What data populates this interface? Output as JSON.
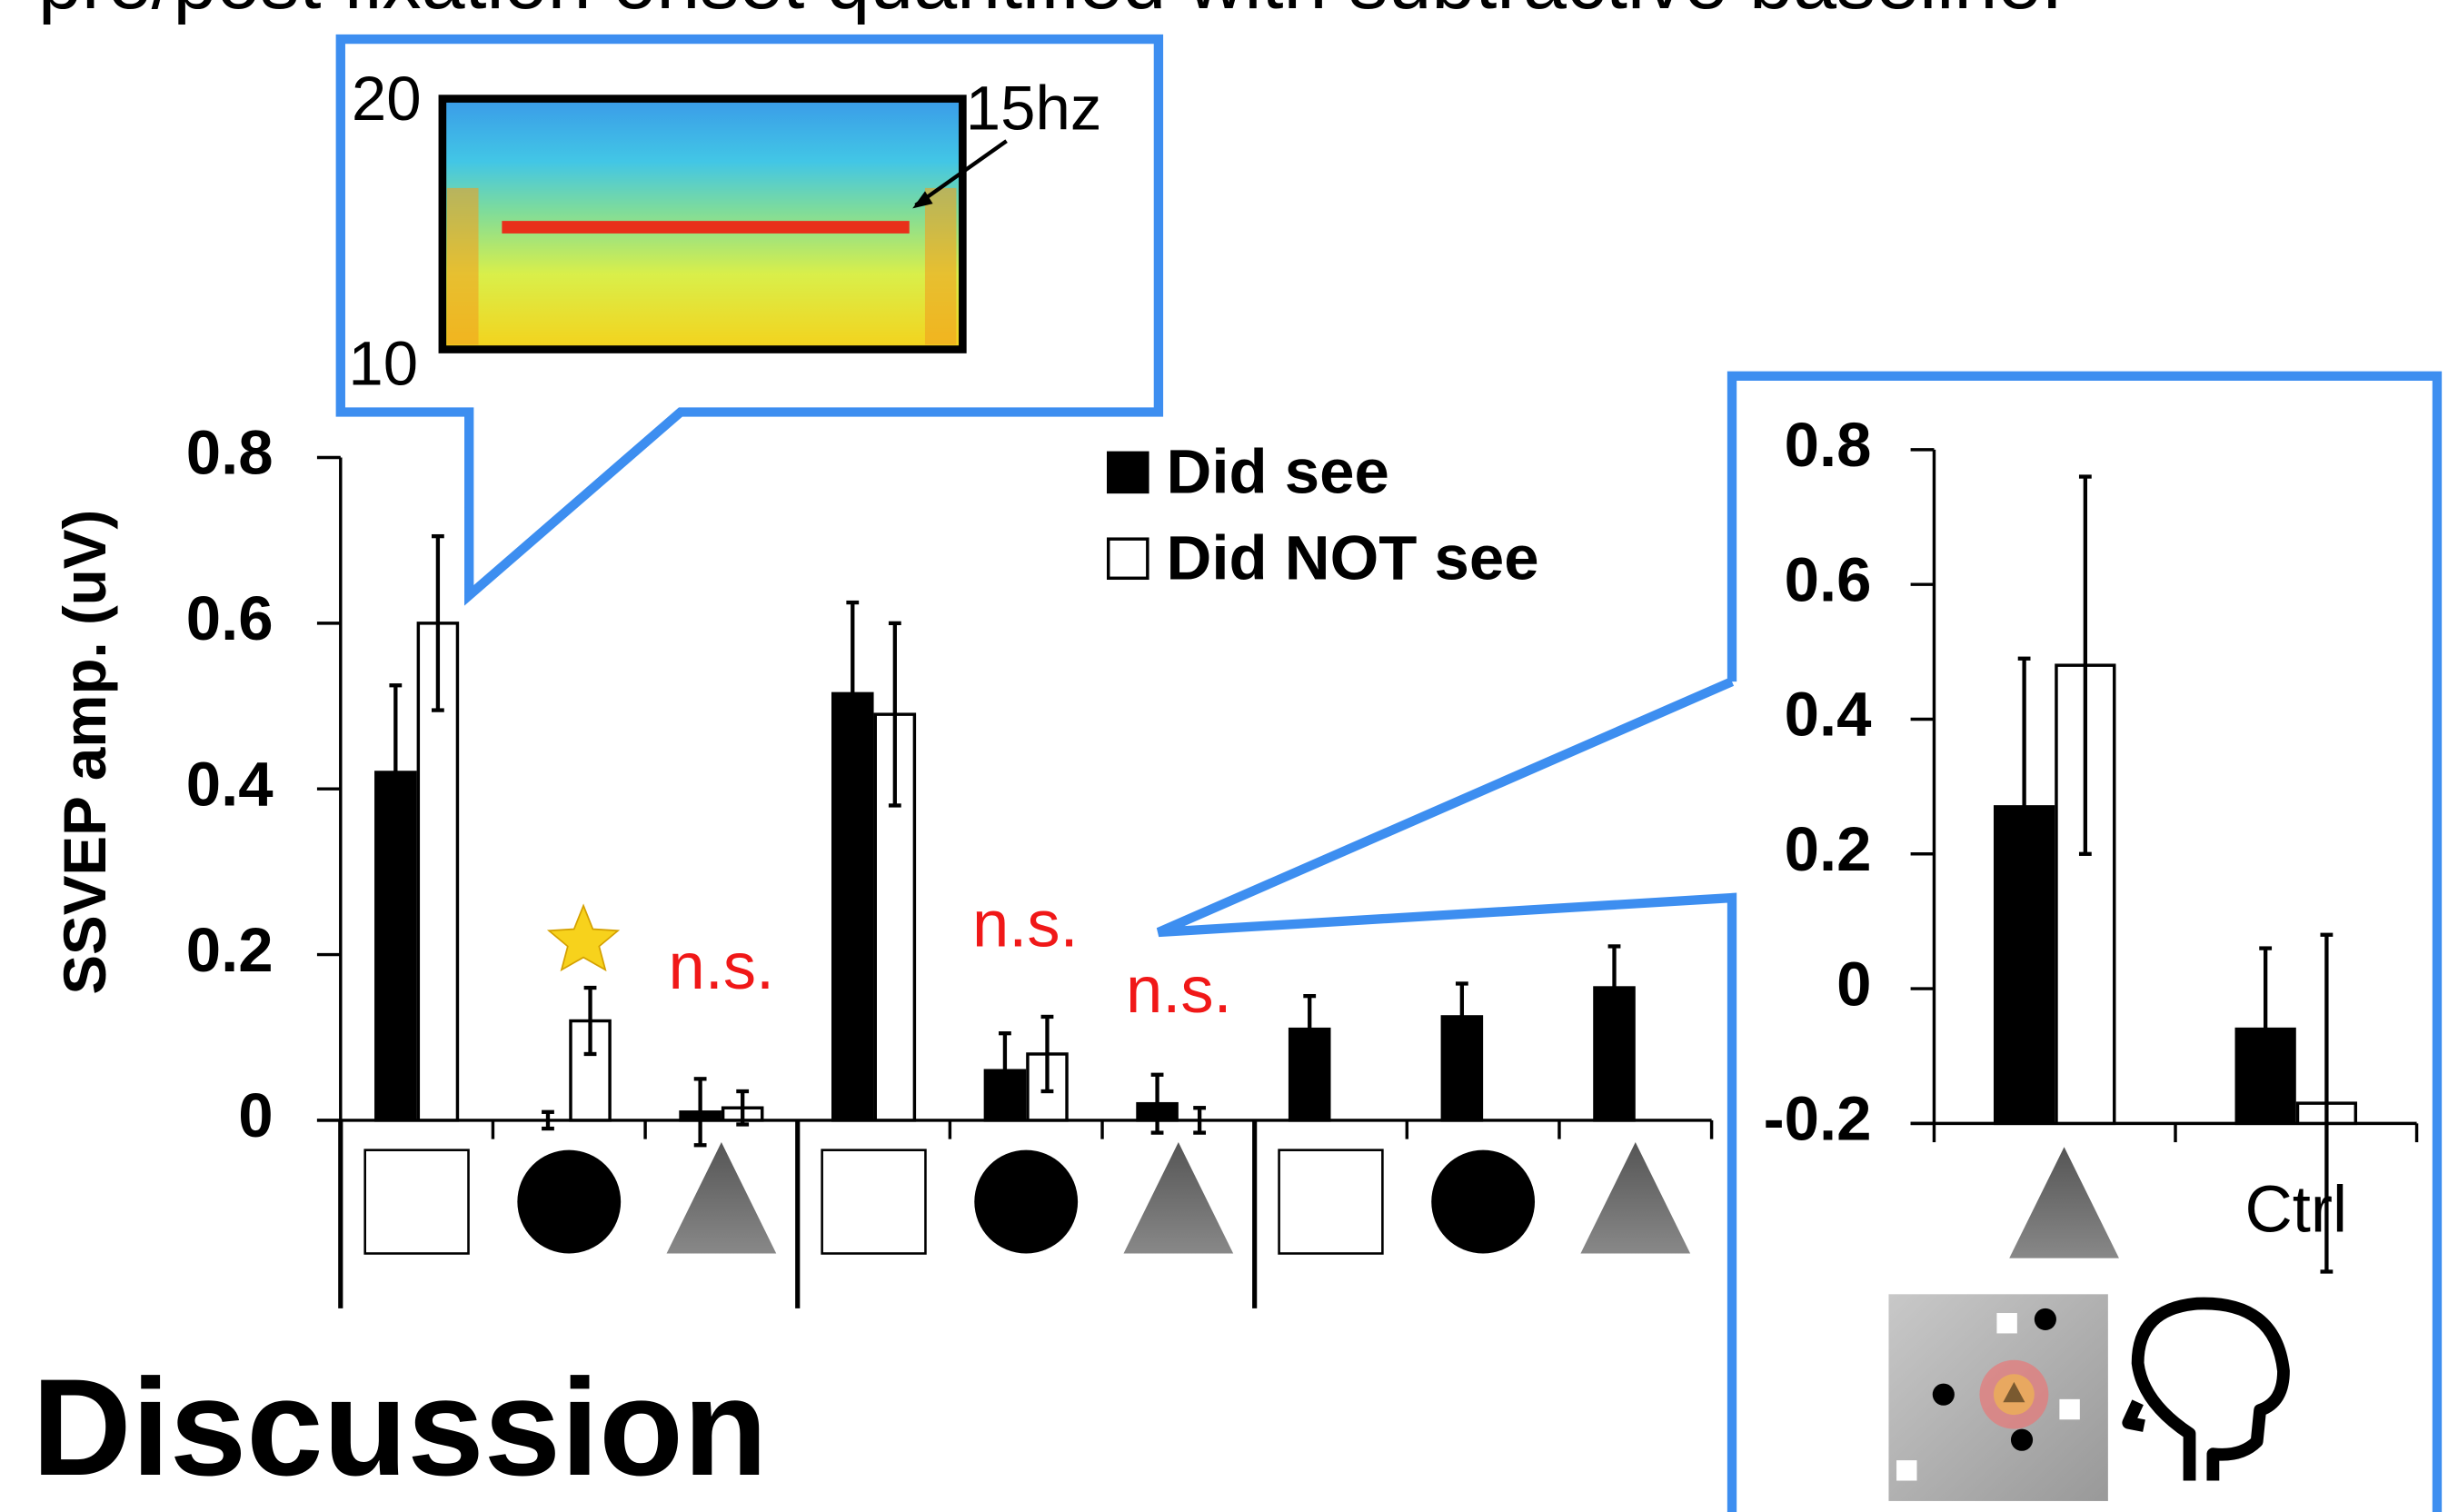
{
  "header": {
    "title": "pre/post fixation onset quantified with subtractive baseline."
  },
  "section": {
    "title": "Discussion"
  },
  "spectrogram": {
    "yticks": [
      10,
      20
    ],
    "annotation": "15hz"
  },
  "chart_data": [
    {
      "type": "bar",
      "y_label": "SSVEP amp. (uV)",
      "legend": true,
      "categories": [
        null,
        null,
        null,
        null,
        null,
        null,
        null,
        null,
        null
      ],
      "series": [
        {
          "name": "Did see",
          "color": "#000000",
          "values": [
            0.42,
            0.0,
            0.01,
            0.515,
            0.06,
            0.02,
            0.11,
            0.125,
            0.16
          ],
          "errors": [
            0.105,
            0.01,
            0.04,
            0.11,
            0.045,
            0.035,
            0.04,
            0.04,
            0.05
          ]
        },
        {
          "name": "Did NOT see",
          "color": "#ffffff",
          "values": [
            0.6,
            0.12,
            0.015,
            0.49,
            0.08,
            0.0,
            null,
            null,
            null
          ],
          "errors": [
            0.105,
            0.04,
            0.02,
            0.11,
            0.045,
            0.015,
            null,
            null,
            null
          ]
        }
      ],
      "annotations": [
        {
          "text": "n.s."
        },
        {
          "text": "n.s."
        },
        {
          "text": "n.s."
        }
      ],
      "ylim": [
        0,
        0.8
      ],
      "yticks": [
        0,
        0.2,
        0.4,
        0.6,
        0.8
      ]
    },
    {
      "type": "bar",
      "legend": false,
      "categories": [
        null,
        "Ctrl"
      ],
      "series": [
        {
          "name": "Did see",
          "color": "#000000",
          "values": [
            0.27,
            -0.06
          ],
          "errors": [
            0.22,
            0.12
          ]
        },
        {
          "name": "Did NOT see",
          "color": "#ffffff",
          "values": [
            0.48,
            -0.17
          ],
          "errors": [
            0.28,
            0.25
          ]
        }
      ],
      "ylim": [
        -0.2,
        0.8
      ],
      "yticks": [
        -0.2,
        0,
        0.2,
        0.4,
        0.6,
        0.8
      ]
    }
  ]
}
